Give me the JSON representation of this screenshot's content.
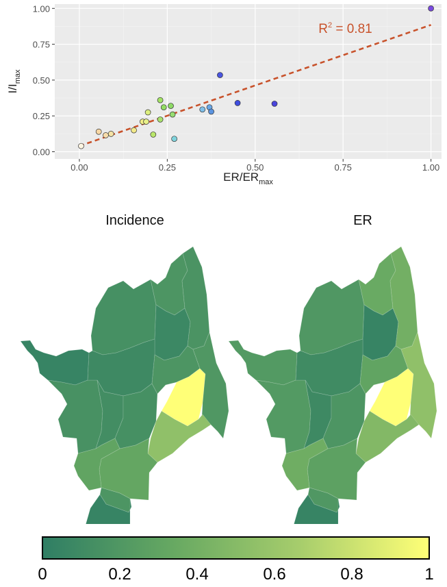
{
  "chart_data": [
    {
      "type": "scatter",
      "xlabel_main": "ER/ER",
      "xlabel_sub": "max",
      "ylabel_main": "I/I",
      "ylabel_sub": "max",
      "xlim": [
        -0.07,
        1.03
      ],
      "ylim": [
        -0.05,
        1.03
      ],
      "x_ticks": [
        0.0,
        0.25,
        0.5,
        0.75,
        1.0
      ],
      "x_tick_labels": [
        "0.00",
        "0.25",
        "0.50",
        "0.75",
        "1.00"
      ],
      "y_ticks": [
        0.0,
        0.25,
        0.5,
        0.75,
        1.0
      ],
      "y_tick_labels": [
        "0.00",
        "0.25",
        "0.50",
        "0.75",
        "1.00"
      ],
      "grid": true,
      "fit": {
        "style": "dashed",
        "color": "#c8522b",
        "x": [
          0.0,
          1.0
        ],
        "y": [
          0.04,
          0.885
        ],
        "label_main": "R",
        "label_sup": "2",
        "label_rest": " = 0.81"
      },
      "points": [
        {
          "x": 0.005,
          "y": 0.04,
          "color": "#fdf5e2"
        },
        {
          "x": 0.055,
          "y": 0.14,
          "color": "#f7d7a4"
        },
        {
          "x": 0.075,
          "y": 0.115,
          "color": "#f7dcaa"
        },
        {
          "x": 0.09,
          "y": 0.125,
          "color": "#f5e3a6"
        },
        {
          "x": 0.155,
          "y": 0.15,
          "color": "#f3ea8a"
        },
        {
          "x": 0.18,
          "y": 0.21,
          "color": "#f1ee88"
        },
        {
          "x": 0.19,
          "y": 0.21,
          "color": "#e8f089"
        },
        {
          "x": 0.195,
          "y": 0.275,
          "color": "#dcee7e"
        },
        {
          "x": 0.21,
          "y": 0.12,
          "color": "#b9e66a"
        },
        {
          "x": 0.23,
          "y": 0.36,
          "color": "#a4e365"
        },
        {
          "x": 0.23,
          "y": 0.225,
          "color": "#a9e16c"
        },
        {
          "x": 0.24,
          "y": 0.31,
          "color": "#93dc63"
        },
        {
          "x": 0.26,
          "y": 0.32,
          "color": "#8ed966"
        },
        {
          "x": 0.265,
          "y": 0.26,
          "color": "#97dd72"
        },
        {
          "x": 0.27,
          "y": 0.09,
          "color": "#7fd3dc"
        },
        {
          "x": 0.35,
          "y": 0.295,
          "color": "#7fbfe9"
        },
        {
          "x": 0.37,
          "y": 0.31,
          "color": "#6aa7e6"
        },
        {
          "x": 0.375,
          "y": 0.28,
          "color": "#5c94e0"
        },
        {
          "x": 0.4,
          "y": 0.535,
          "color": "#4a55e0"
        },
        {
          "x": 0.45,
          "y": 0.34,
          "color": "#3f4ee0"
        },
        {
          "x": 0.555,
          "y": 0.335,
          "color": "#4a45dc"
        },
        {
          "x": 1.0,
          "y": 1.0,
          "color": "#7a4ae0"
        }
      ]
    },
    {
      "type": "heatmap",
      "maps": [
        {
          "title": "Incidence",
          "regions": [
            {
              "id": "northwest-arm",
              "value": 0.05
            },
            {
              "id": "west",
              "value": 0.15
            },
            {
              "id": "north-outer",
              "value": 0.14
            },
            {
              "id": "north-top",
              "value": 0.18
            },
            {
              "id": "north-inner",
              "value": 0.08
            },
            {
              "id": "northeast",
              "value": 0.17
            },
            {
              "id": "north-central",
              "value": 0.09
            },
            {
              "id": "center-west",
              "value": 0.12
            },
            {
              "id": "center",
              "value": 0.14
            },
            {
              "id": "center-east",
              "value": 0.18
            },
            {
              "id": "hotspot",
              "value": 1.0
            },
            {
              "id": "east",
              "value": 0.2
            },
            {
              "id": "southeast-band",
              "value": 0.55
            },
            {
              "id": "south-center",
              "value": 0.32
            },
            {
              "id": "southwest",
              "value": 0.3
            },
            {
              "id": "south-mid",
              "value": 0.18
            },
            {
              "id": "south-tail",
              "value": 0.05
            }
          ]
        },
        {
          "title": "ER",
          "regions": [
            {
              "id": "northwest-arm",
              "value": 0.22
            },
            {
              "id": "west",
              "value": 0.22
            },
            {
              "id": "north-outer",
              "value": 0.2
            },
            {
              "id": "north-top",
              "value": 0.35
            },
            {
              "id": "north-inner",
              "value": 0.05
            },
            {
              "id": "northeast",
              "value": 0.4
            },
            {
              "id": "north-central",
              "value": 0.1
            },
            {
              "id": "center-west",
              "value": 0.09
            },
            {
              "id": "center",
              "value": 0.18
            },
            {
              "id": "center-east",
              "value": 0.3
            },
            {
              "id": "hotspot",
              "value": 1.0
            },
            {
              "id": "east",
              "value": 0.55
            },
            {
              "id": "southeast-band",
              "value": 0.48
            },
            {
              "id": "south-center",
              "value": 0.28
            },
            {
              "id": "southwest",
              "value": 0.38
            },
            {
              "id": "south-mid",
              "value": 0.2
            },
            {
              "id": "south-tail",
              "value": 0.05
            }
          ]
        }
      ],
      "colorbar": {
        "min": 0,
        "max": 1,
        "tick_values": [
          0,
          0.2,
          0.4,
          0.6,
          0.8,
          1
        ],
        "tick_labels": [
          "0",
          "0.2",
          "0.4",
          "0.6",
          "0.8",
          "1"
        ],
        "stops": [
          "#2f7e64",
          "#66a862",
          "#a7cd6c",
          "#ffff77"
        ]
      }
    }
  ]
}
